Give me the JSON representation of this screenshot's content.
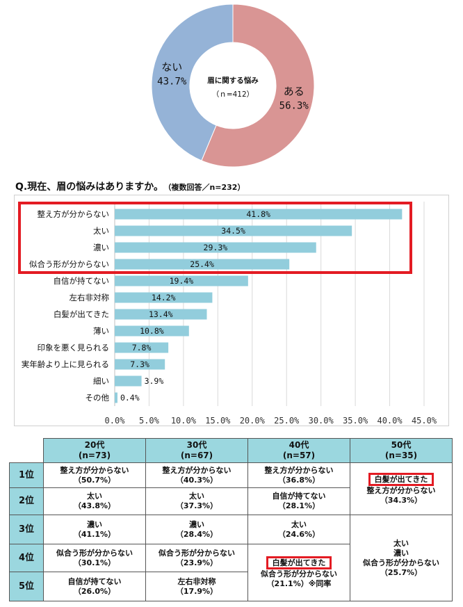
{
  "donut": {
    "center_title": "眉に関する悩み",
    "center_n": "（ｎ=412）",
    "slices": [
      {
        "label": "ある",
        "value": 56.3,
        "pct_label": "56.3%",
        "color": "#d99594"
      },
      {
        "label": "ない",
        "value": 43.7,
        "pct_label": "43.7%",
        "color": "#95b3d7"
      }
    ]
  },
  "question": {
    "text": "Q.現在、眉の悩みはありますか。",
    "note": "（複数回答／n=232）"
  },
  "chart_data": {
    "type": "bar",
    "orientation": "horizontal",
    "categories": [
      "整え方が分からない",
      "太い",
      "濃い",
      "似合う形が分からない",
      "自信が持てない",
      "左右非対称",
      "白髪が出てきた",
      "薄い",
      "印象を悪く見られる",
      "実年齢より上に見られる",
      "細い",
      "その他"
    ],
    "values": [
      41.8,
      34.5,
      29.3,
      25.4,
      19.4,
      14.2,
      13.4,
      10.8,
      7.8,
      7.3,
      3.9,
      0.4
    ],
    "value_labels": [
      "41.8%",
      "34.5%",
      "29.3%",
      "25.4%",
      "19.4%",
      "14.2%",
      "13.4%",
      "10.8%",
      "7.8%",
      "7.3%",
      "3.9%",
      "0.4%"
    ],
    "xticks": [
      "0.0%",
      "5.0%",
      "10.0%",
      "15.0%",
      "20.0%",
      "25.0%",
      "30.0%",
      "35.0%",
      "40.0%",
      "45.0%"
    ],
    "xlim": [
      0,
      45
    ],
    "grid": true,
    "bar_color": "#92cddc",
    "highlight_color": "#e31b23"
  },
  "ranking": {
    "columns": [
      {
        "age": "20代",
        "n": "(n=73)"
      },
      {
        "age": "30代",
        "n": "(n=67)"
      },
      {
        "age": "40代",
        "n": "(n=57)"
      },
      {
        "age": "50代",
        "n": "(n=35)"
      }
    ],
    "ranks": [
      "1位",
      "2位",
      "3位",
      "4位",
      "5位"
    ],
    "col20": [
      {
        "name": "整え方が分からない",
        "pct": "（50.7%）"
      },
      {
        "name": "太い",
        "pct": "（43.8%）"
      },
      {
        "name": "濃い",
        "pct": "（41.1%）"
      },
      {
        "name": "似合う形が分からない",
        "pct": "（30.1%）"
      },
      {
        "name": "自信が持てない",
        "pct": "（26.0%）"
      }
    ],
    "col30": [
      {
        "name": "整え方が分からない",
        "pct": "（40.3%）"
      },
      {
        "name": "太い",
        "pct": "（37.3%）"
      },
      {
        "name": "濃い",
        "pct": "（28.4%）"
      },
      {
        "name": "似合う形が分からない",
        "pct": "（23.9%）"
      },
      {
        "name": "左右非対称",
        "pct": "（17.9%）"
      }
    ],
    "col40": {
      "r1": {
        "name": "整え方が分からない",
        "pct": "（36.8%）"
      },
      "r2": {
        "name": "自信が持てない",
        "pct": "（28.1%）"
      },
      "r3": {
        "name": "太い",
        "pct": "（24.6%）"
      },
      "r45": {
        "name1": "白髪が出てきた",
        "name2": "似合う形が分からない",
        "pct": "（21.1%）※同率"
      }
    },
    "col50": {
      "r12": {
        "name1": "白髪が出てきた",
        "name2": "整え方が分からない",
        "pct": "（34.3%）"
      },
      "r35": {
        "name1": "太い",
        "name2": "濃い",
        "name3": "似合う形が分からない",
        "pct": "（25.7%）"
      }
    }
  }
}
